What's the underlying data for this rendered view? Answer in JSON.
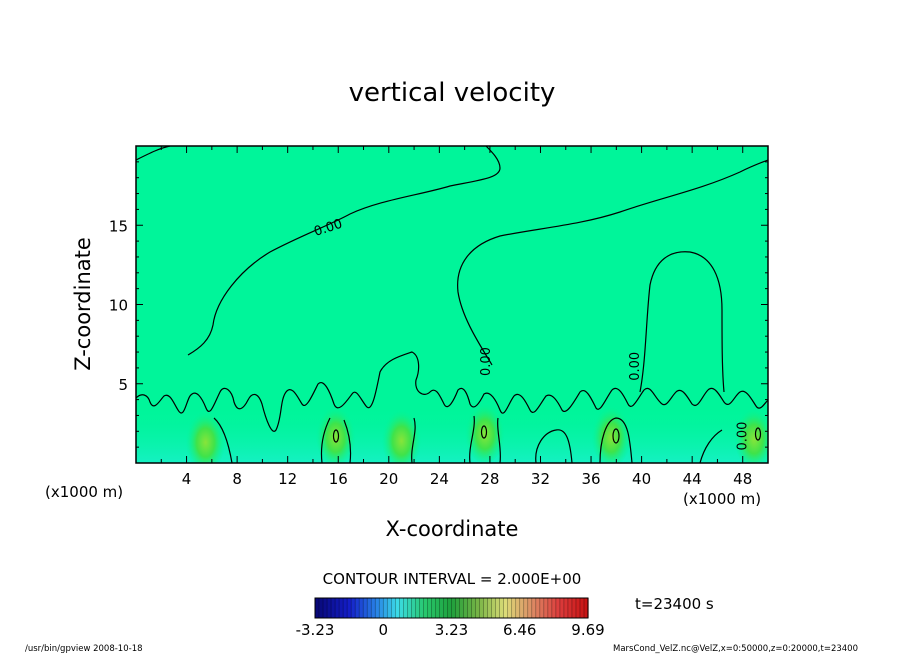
{
  "chart_data": {
    "type": "contour",
    "title": "vertical velocity",
    "xlabel": "X-coordinate",
    "ylabel": "Z-coordinate",
    "x_unit_left": "(x1000 m)",
    "x_unit_right": "(x1000 m)",
    "xlim": [
      0,
      50
    ],
    "ylim": [
      0,
      20
    ],
    "x_ticks": [
      4,
      8,
      12,
      16,
      20,
      24,
      28,
      32,
      36,
      40,
      44,
      48
    ],
    "y_ticks": [
      5,
      10,
      15
    ],
    "contour_interval_label": "CONTOUR INTERVAL = 2.000E+00",
    "contour_labels": [
      {
        "text": "0.00",
        "x": 15.3,
        "z": 14.6,
        "angle": -18
      },
      {
        "text": "0.00",
        "x": 28.0,
        "z": 6.4,
        "angle": -90
      },
      {
        "text": "0.00",
        "x": 39.8,
        "z": 6.1,
        "angle": -90
      },
      {
        "text": "0.00",
        "x": 48.3,
        "z": 1.7,
        "angle": -90
      }
    ],
    "colorbar": {
      "min": -3.23,
      "max": 9.69,
      "tick_labels": [
        "-3.23",
        "0",
        "3.23",
        "6.46",
        "9.69"
      ],
      "tick_values": [
        -3.23,
        0,
        3.23,
        6.46,
        9.69
      ]
    },
    "updraft_cores": [
      {
        "x": 5.5,
        "z": 1.5
      },
      {
        "x": 15.8,
        "z": 1.8
      },
      {
        "x": 21.0,
        "z": 1.6
      },
      {
        "x": 27.6,
        "z": 2.0
      },
      {
        "x": 37.6,
        "z": 1.8
      },
      {
        "x": 48.9,
        "z": 1.7
      }
    ],
    "time_label": "t=23400 s",
    "footer_left": "/usr/bin/gpview   2008-10-18",
    "footer_right": "MarsCond_VelZ.nc@VelZ,x=0:50000,z=0:20000,t=23400"
  },
  "colors": {
    "background_field": "#00f59a",
    "contour_line": "#000000"
  }
}
